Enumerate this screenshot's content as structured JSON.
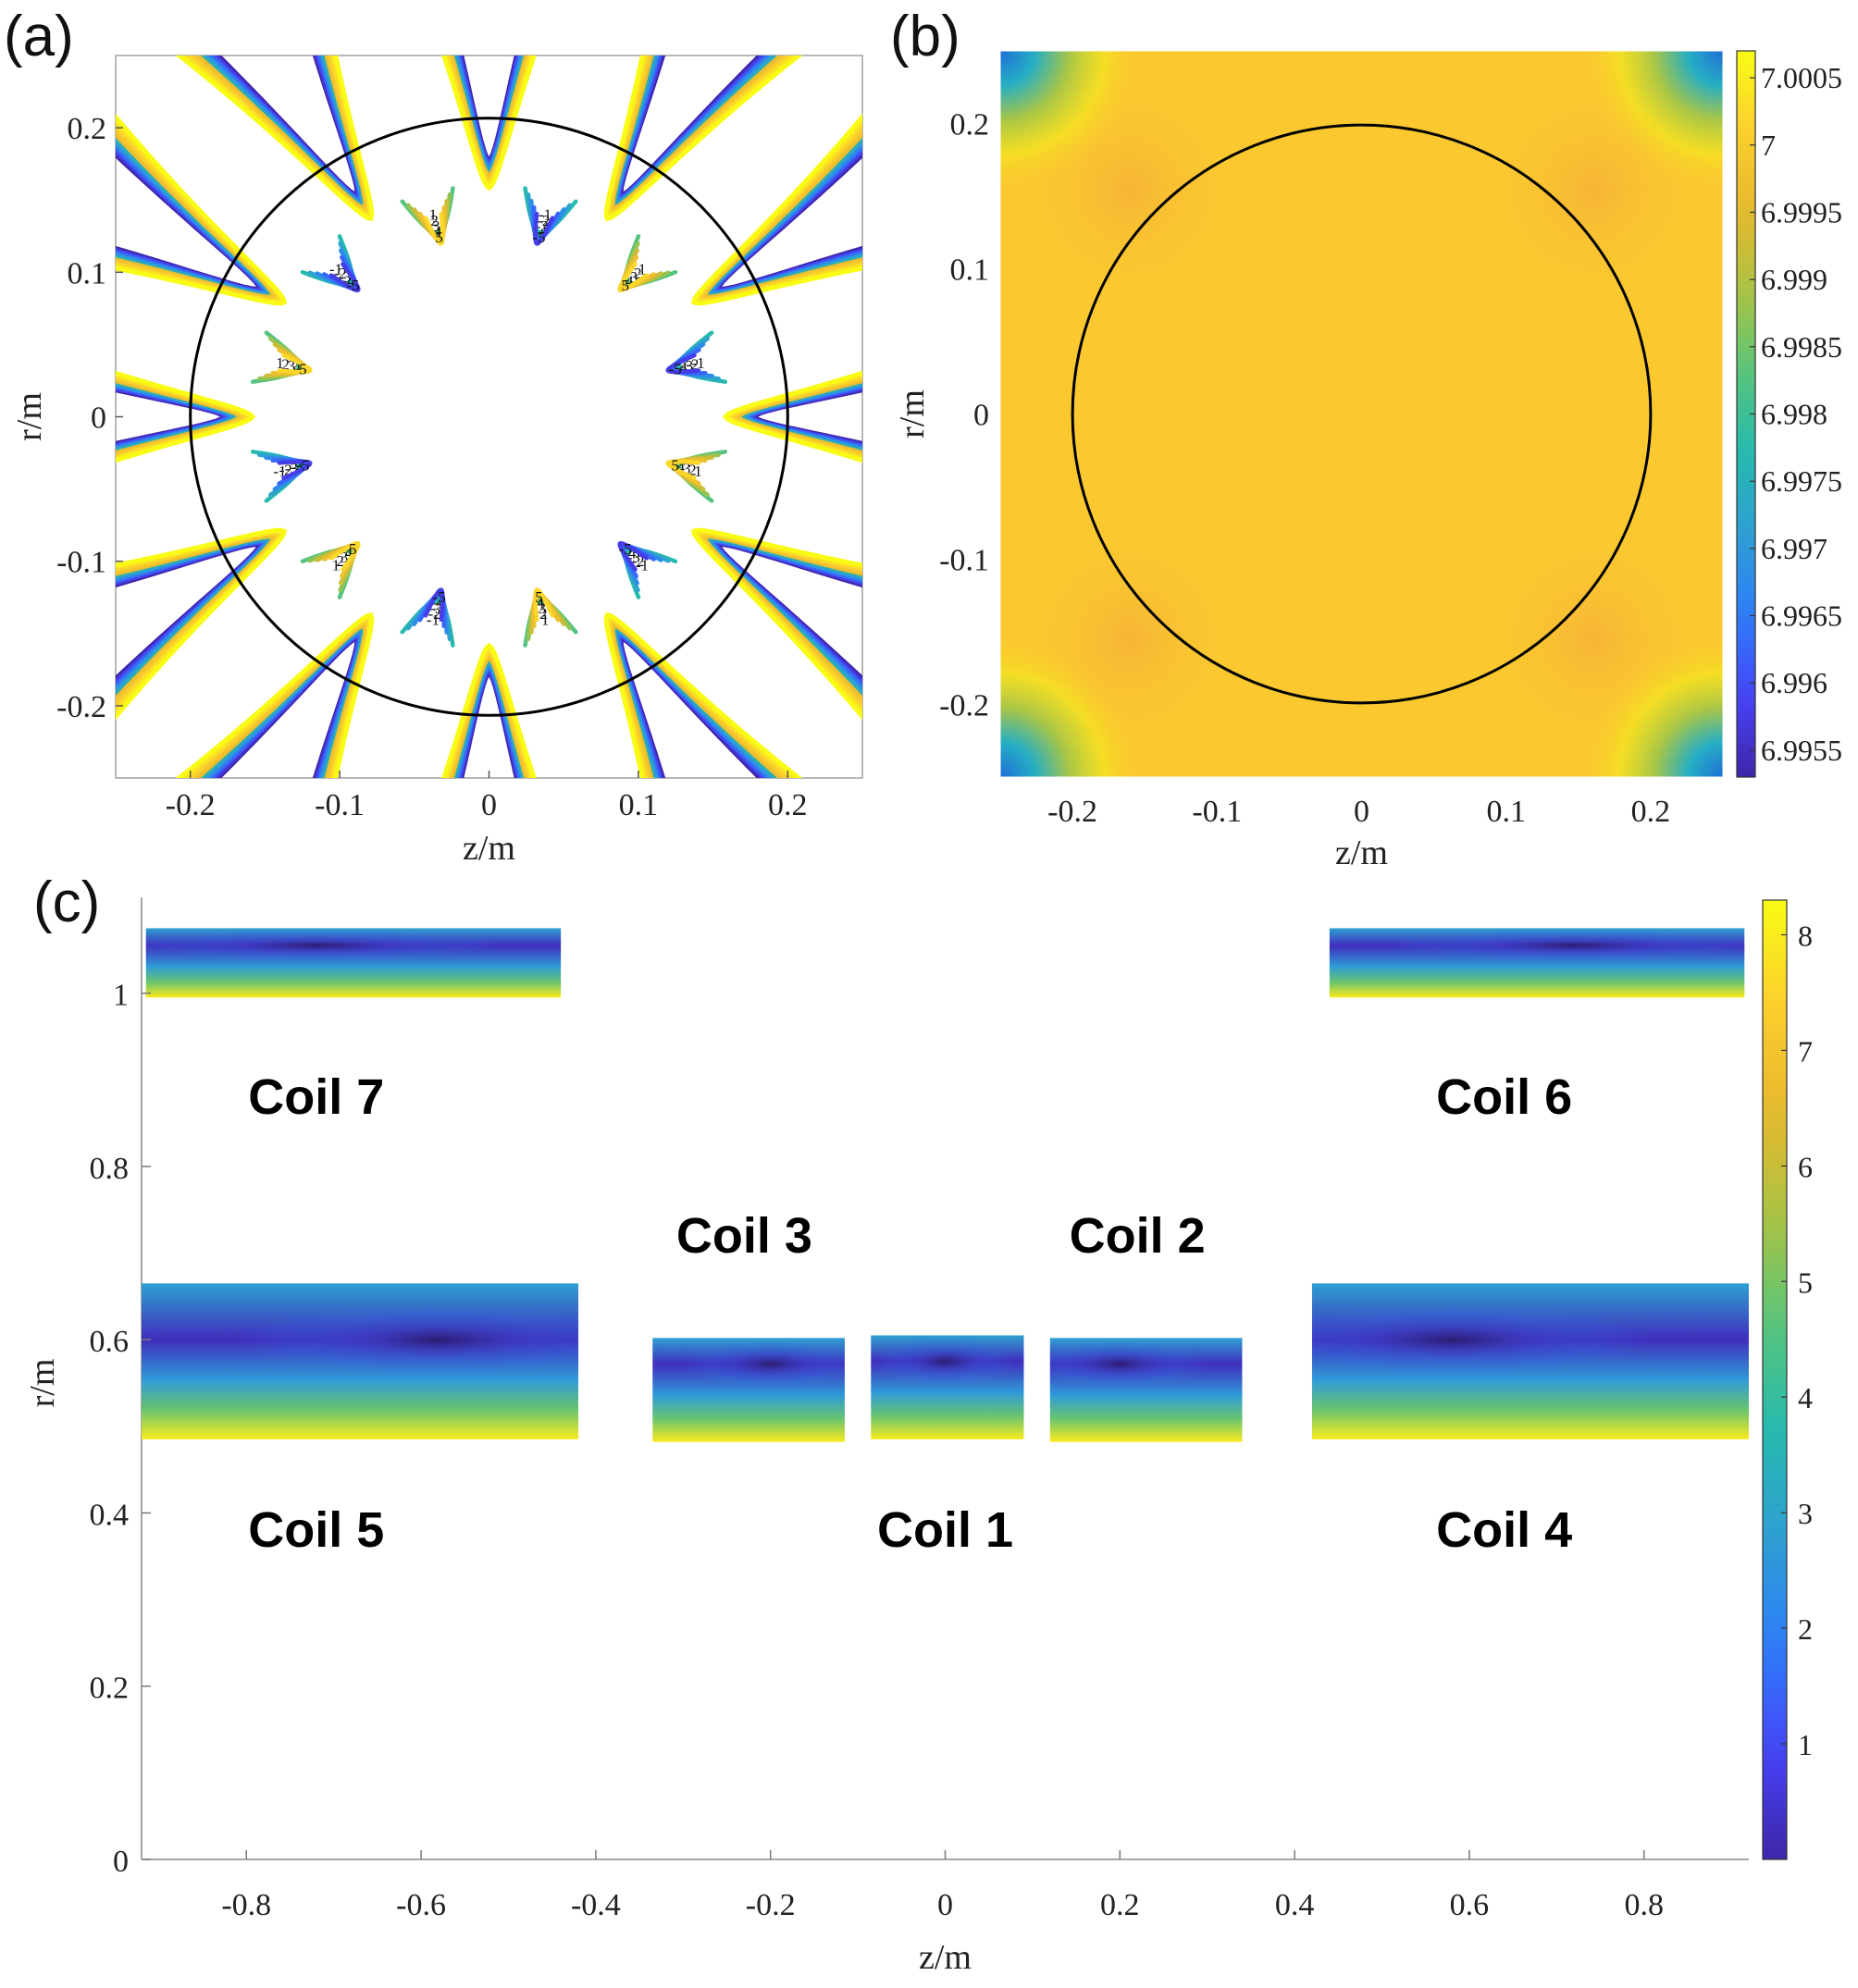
{
  "panels": {
    "a": "(a)",
    "b": "(b)",
    "c": "(c)"
  },
  "colors": {
    "parula": [
      "#3e26a8",
      "#4743f7",
      "#2d7ef9",
      "#2f9ed3",
      "#25b9b0",
      "#56c47c",
      "#a8c343",
      "#e6b82e",
      "#fcce2e",
      "#f9fb15"
    ],
    "uniform": "#fbc92f",
    "circle": "#000000"
  },
  "chart_data": [
    {
      "id": "a",
      "type": "contour",
      "title": "",
      "xlabel": "z/m",
      "ylabel": "r/m",
      "xlim": [
        -0.25,
        0.25
      ],
      "ylim": [
        -0.25,
        0.25
      ],
      "xticks": [
        -0.2,
        -0.1,
        0,
        0.1,
        0.2
      ],
      "xtick_labels": [
        "-0.2",
        "-0.1",
        "0",
        "0.1",
        "0.2"
      ],
      "yticks": [
        -0.2,
        -0.1,
        0,
        0.1,
        0.2
      ],
      "ytick_labels": [
        "-0.2",
        "-0.1",
        "0",
        "0.1",
        "0.2"
      ],
      "circle_radius": 0.2,
      "cusp_angles_deg": [
        0,
        30,
        60,
        90,
        120,
        150,
        180,
        210,
        240,
        270,
        300,
        330
      ],
      "contour_levels": [
        -5,
        -4,
        -3,
        -2,
        -1,
        1,
        2,
        3,
        4,
        5
      ],
      "contour_labels": [
        "-1",
        "-2",
        "-3",
        "-4",
        "-5",
        "1",
        "2",
        "3",
        "4",
        "5"
      ]
    },
    {
      "id": "b",
      "type": "heatmap",
      "title": "",
      "xlabel": "z/m",
      "ylabel": "r/m",
      "xlim": [
        -0.25,
        0.25
      ],
      "ylim": [
        -0.25,
        0.25
      ],
      "xticks": [
        -0.2,
        -0.1,
        0,
        0.1,
        0.2
      ],
      "xtick_labels": [
        "-0.2",
        "-0.1",
        "0",
        "0.1",
        "0.2"
      ],
      "yticks": [
        -0.2,
        -0.1,
        0,
        0.1,
        0.2
      ],
      "ytick_labels": [
        "-0.2",
        "-0.1",
        "0",
        "0.1",
        "0.2"
      ],
      "circle_radius": 0.2,
      "colorbar": {
        "range": [
          6.9953,
          7.0007
        ],
        "ticks": [
          7.0005,
          7,
          6.9995,
          6.999,
          6.9985,
          6.998,
          6.9975,
          6.997,
          6.9965,
          6.996,
          6.9955
        ],
        "tick_labels": [
          "7.0005",
          "7",
          "6.9995",
          "6.999",
          "6.9985",
          "6.998",
          "6.9975",
          "6.997",
          "6.9965",
          "6.996",
          "6.9955"
        ]
      }
    },
    {
      "id": "c",
      "type": "heatmap",
      "title": "",
      "xlabel": "z/m",
      "ylabel": "r/m",
      "xlim": [
        -0.92,
        0.92
      ],
      "ylim": [
        0,
        1.1
      ],
      "xticks": [
        -0.8,
        -0.6,
        -0.4,
        -0.2,
        0,
        0.2,
        0.4,
        0.6,
        0.8
      ],
      "xtick_labels": [
        "-0.8",
        "-0.6",
        "-0.4",
        "-0.2",
        "0",
        "0.2",
        "0.4",
        "0.6",
        "0.8"
      ],
      "yticks": [
        0,
        0.2,
        0.4,
        0.6,
        0.8,
        1
      ],
      "ytick_labels": [
        "0",
        "0.2",
        "0.4",
        "0.6",
        "0.8",
        "1"
      ],
      "coils": [
        {
          "name": "Coil 1",
          "z": [
            -0.085,
            0.09
          ],
          "r": [
            0.485,
            0.605
          ],
          "min_at": [
            0,
            0.575
          ]
        },
        {
          "name": "Coil 2",
          "z": [
            0.12,
            0.34
          ],
          "r": [
            0.482,
            0.602
          ],
          "min_at": [
            0.2,
            0.572
          ]
        },
        {
          "name": "Coil 3",
          "z": [
            -0.335,
            -0.115
          ],
          "r": [
            0.482,
            0.602
          ],
          "min_at": [
            -0.2,
            0.572
          ]
        },
        {
          "name": "Coil 4",
          "z": [
            0.42,
            0.92
          ],
          "r": [
            0.485,
            0.665
          ],
          "min_at": [
            0.58,
            0.6
          ]
        },
        {
          "name": "Coil 5",
          "z": [
            -0.92,
            -0.42
          ],
          "r": [
            0.485,
            0.665
          ],
          "min_at": [
            -0.58,
            0.6
          ]
        },
        {
          "name": "Coil 6",
          "z": [
            0.44,
            0.915
          ],
          "r": [
            0.995,
            1.075
          ],
          "min_at": [
            0.72,
            1.055
          ]
        },
        {
          "name": "Coil 7",
          "z": [
            -0.915,
            -0.44
          ],
          "r": [
            0.995,
            1.075
          ],
          "min_at": [
            -0.72,
            1.055
          ]
        }
      ],
      "labels": [
        {
          "text": "Coil 7",
          "z": -0.72,
          "r": 0.88
        },
        {
          "text": "Coil 6",
          "z": 0.64,
          "r": 0.88
        },
        {
          "text": "Coil 3",
          "z": -0.23,
          "r": 0.72
        },
        {
          "text": "Coil 2",
          "z": 0.22,
          "r": 0.72
        },
        {
          "text": "Coil 5",
          "z": -0.72,
          "r": 0.38
        },
        {
          "text": "Coil 1",
          "z": 0,
          "r": 0.38
        },
        {
          "text": "Coil 4",
          "z": 0.64,
          "r": 0.38
        }
      ],
      "colorbar": {
        "range": [
          0,
          8.3
        ],
        "ticks": [
          1,
          2,
          3,
          4,
          5,
          6,
          7,
          8
        ],
        "tick_labels": [
          "1",
          "2",
          "3",
          "4",
          "5",
          "6",
          "7",
          "8"
        ]
      }
    }
  ]
}
